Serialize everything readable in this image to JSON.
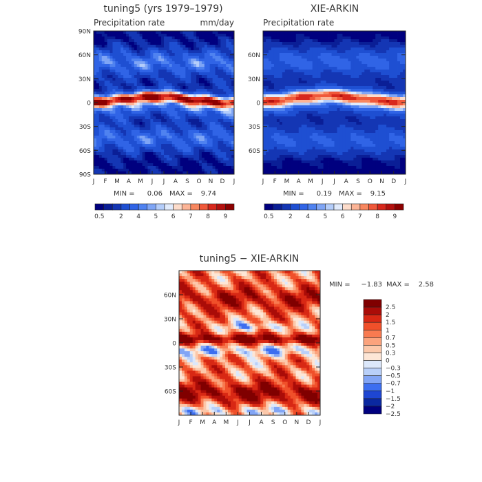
{
  "months": [
    "J",
    "F",
    "M",
    "A",
    "M",
    "J",
    "J",
    "A",
    "S",
    "O",
    "N",
    "D",
    "J"
  ],
  "colors": {
    "abs": [
      "#00007f",
      "#0a1e96",
      "#1436b4",
      "#1e4fd2",
      "#3064e6",
      "#4f82f0",
      "#7fa5f5",
      "#b4cdfa",
      "#e1ebfc",
      "#fcdccb",
      "#fcb496",
      "#f8875f",
      "#f0583a",
      "#d8281c",
      "#b4100e",
      "#8c0000"
    ],
    "diff": [
      "#00007f",
      "#0a28a0",
      "#1e46d2",
      "#3c6ef0",
      "#82a5f5",
      "#b9d0f9",
      "#dce8fb",
      "#fde6d6",
      "#fcc8aa",
      "#fba37d",
      "#f87a50",
      "#f0502a",
      "#d82814",
      "#aa0c08",
      "#800000"
    ]
  },
  "chart_data": [
    {
      "type": "heatmap",
      "title": "tuning5 (yrs 1979–1979)",
      "subtitle_left": "Precipitation rate",
      "subtitle_right": "mm/day",
      "x_ticks": [
        "J",
        "F",
        "M",
        "A",
        "M",
        "J",
        "J",
        "A",
        "S",
        "O",
        "N",
        "D",
        "J"
      ],
      "y_ticks": [
        "90N",
        "60N",
        "30N",
        "0",
        "30S",
        "60S",
        "90S"
      ],
      "ylim": [
        -90,
        90
      ],
      "min_label": "MIN =",
      "min": "0.06",
      "max_label": "MAX =",
      "max": "9.74",
      "colorbar_labels": [
        "0.5",
        "2",
        "4",
        "5",
        "6",
        "7",
        "8",
        "9"
      ]
    },
    {
      "type": "heatmap",
      "title": "XIE-ARKIN",
      "subtitle_left": "Precipitation rate",
      "subtitle_right": "",
      "x_ticks": [
        "J",
        "F",
        "M",
        "A",
        "M",
        "J",
        "J",
        "A",
        "S",
        "O",
        "N",
        "D",
        "J"
      ],
      "y_ticks": [
        "60N",
        "30N",
        "0",
        "30S",
        "60S"
      ],
      "ylim": [
        -90,
        90
      ],
      "min_label": "MIN =",
      "min": "0.19",
      "max_label": "MAX =",
      "max": "9.15",
      "colorbar_labels": [
        "0.5",
        "2",
        "4",
        "5",
        "6",
        "7",
        "8",
        "9"
      ]
    },
    {
      "type": "heatmap",
      "title": "tuning5 − XIE-ARKIN",
      "x_ticks": [
        "J",
        "F",
        "M",
        "A",
        "M",
        "J",
        "J",
        "A",
        "S",
        "O",
        "N",
        "D",
        "J"
      ],
      "y_ticks": [
        "60N",
        "30N",
        "0",
        "30S",
        "60S"
      ],
      "ylim": [
        -90,
        90
      ],
      "min_label": "MIN =",
      "min": "−1.83",
      "max_label": "MAX =",
      "max": "2.58",
      "colorbar_labels": [
        "2.5",
        "2",
        "1.5",
        "1",
        "0.7",
        "0.5",
        "0.3",
        "0",
        "−0.3",
        "−0.5",
        "−0.7",
        "−1",
        "−1.5",
        "−2",
        "−2.5"
      ]
    }
  ]
}
